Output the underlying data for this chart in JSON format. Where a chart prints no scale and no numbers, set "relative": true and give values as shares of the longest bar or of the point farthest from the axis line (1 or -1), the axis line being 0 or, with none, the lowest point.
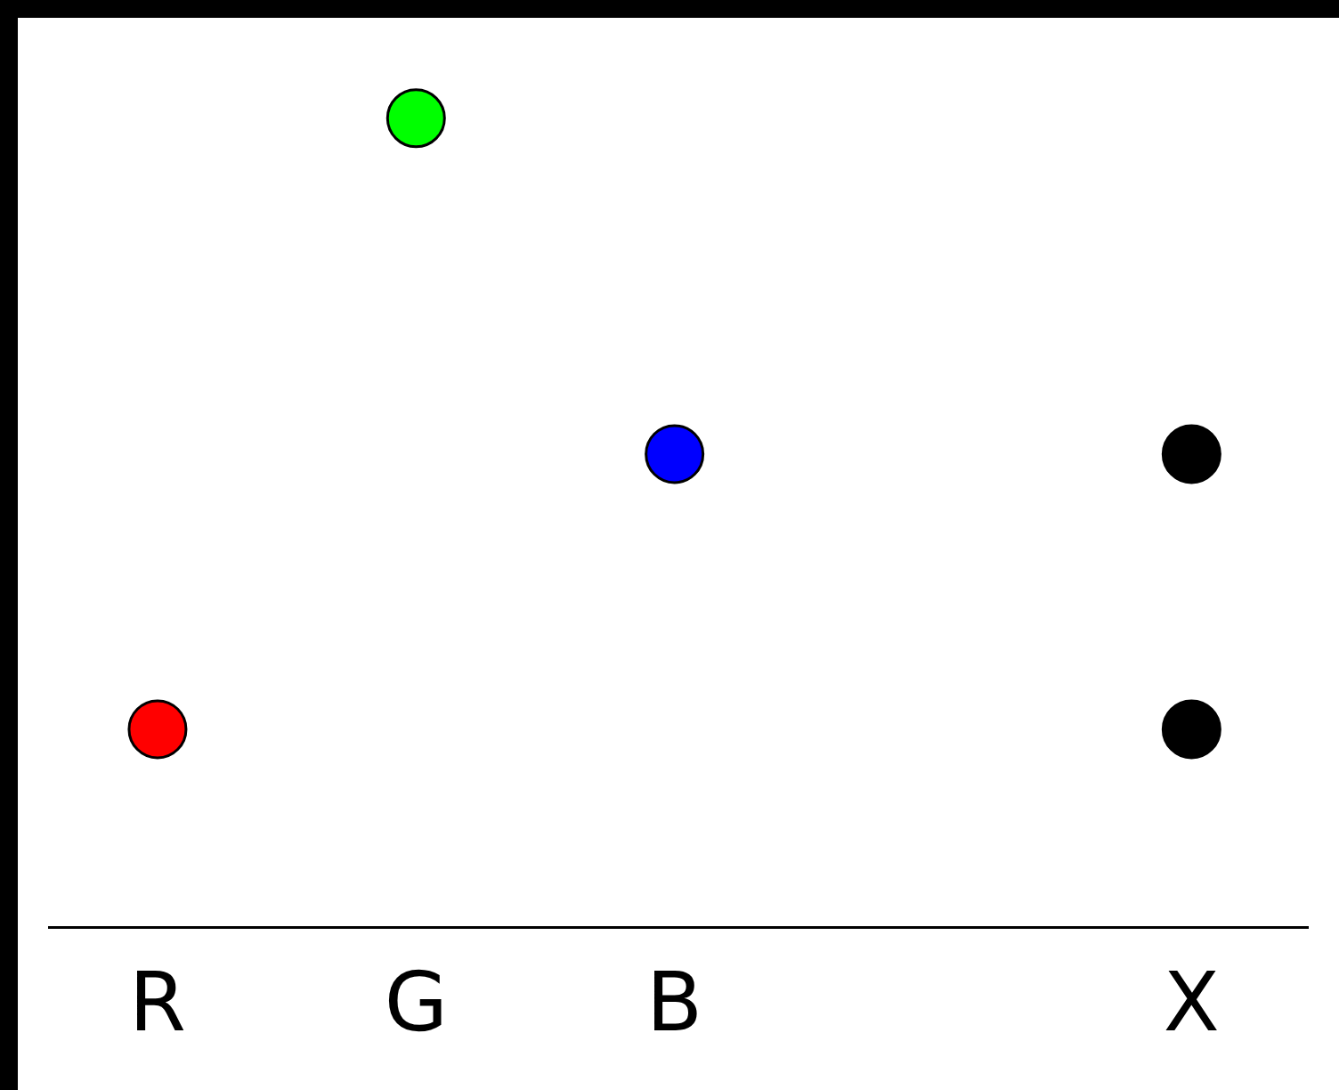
{
  "chart_data": {
    "type": "scatter",
    "relative": true,
    "categories": [
      "R",
      "G",
      "B",
      null,
      "X"
    ],
    "marker": "circle",
    "grid": false,
    "legend": false,
    "series": [
      {
        "x": [
          "R",
          "G",
          "B",
          "X",
          "X"
        ],
        "values": [
          0.245,
          1,
          0.585,
          0.585,
          0.245
        ],
        "colors": [
          "#ff0000",
          "#00ff00",
          "#0000ff",
          "#000000",
          "#000000"
        ]
      }
    ]
  }
}
